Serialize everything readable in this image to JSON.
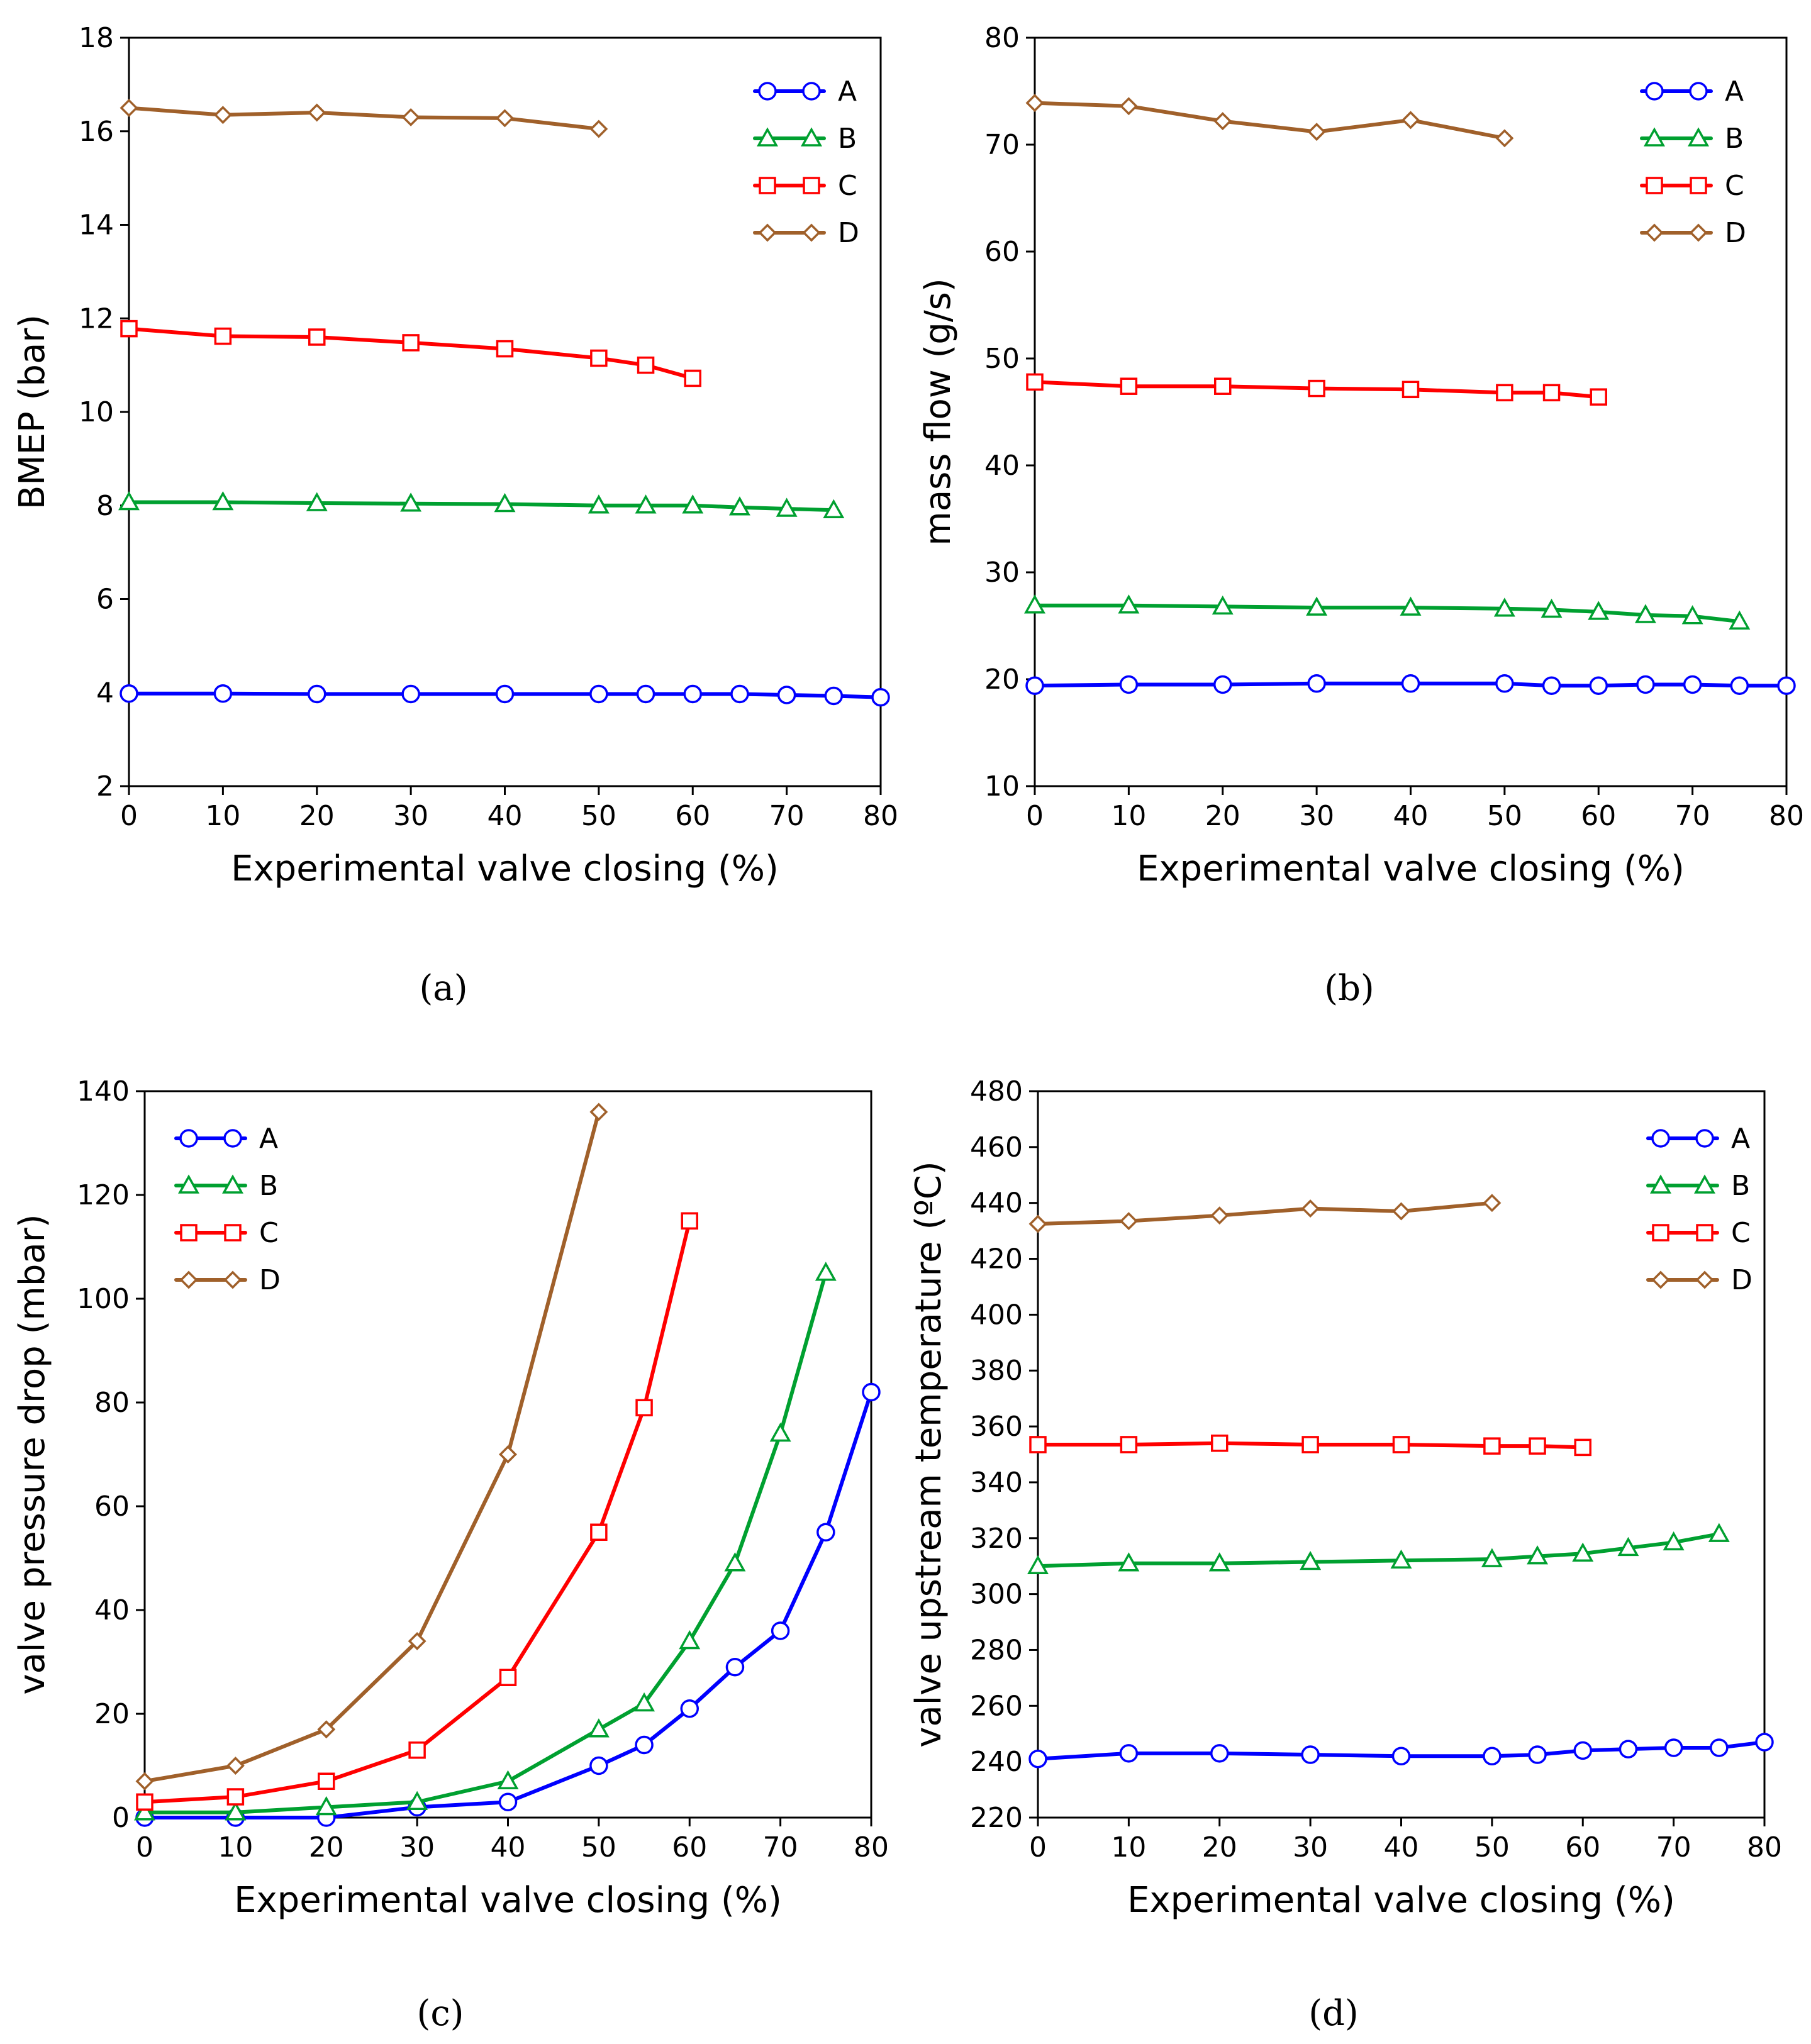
{
  "colors": {
    "A": "#0000ff",
    "B": "#00a030",
    "C": "#ff0000",
    "D": "#a0602a"
  },
  "chart_data": [
    {
      "type": "line",
      "caption": "(a)",
      "xlabel": "Experimental valve closing (%)",
      "ylabel": "BMEP (bar)",
      "xlim": [
        0,
        80
      ],
      "ylim": [
        2,
        18
      ],
      "xticks": [
        "0",
        "10",
        "20",
        "30",
        "40",
        "50",
        "60",
        "70",
        "80"
      ],
      "yticks": [
        "2",
        "4",
        "6",
        "8",
        "10",
        "12",
        "14",
        "16",
        "18"
      ],
      "legend_position": "top-right",
      "series": [
        {
          "name": "A",
          "marker": "circle",
          "x": [
            0,
            10,
            20,
            30,
            40,
            50,
            55,
            60,
            65,
            70,
            75,
            80
          ],
          "y": [
            3.98,
            3.98,
            3.97,
            3.97,
            3.97,
            3.97,
            3.97,
            3.97,
            3.97,
            3.95,
            3.93,
            3.9
          ]
        },
        {
          "name": "B",
          "marker": "triangle",
          "x": [
            0,
            10,
            20,
            30,
            40,
            50,
            55,
            60,
            65,
            70,
            75
          ],
          "y": [
            8.07,
            8.07,
            8.05,
            8.04,
            8.03,
            8.0,
            8.0,
            8.0,
            7.96,
            7.93,
            7.9
          ]
        },
        {
          "name": "C",
          "marker": "square",
          "x": [
            0,
            10,
            20,
            30,
            40,
            50,
            55,
            60
          ],
          "y": [
            11.78,
            11.62,
            11.6,
            11.48,
            11.35,
            11.15,
            11.0,
            10.72
          ]
        },
        {
          "name": "D",
          "marker": "diamond",
          "x": [
            0,
            10,
            20,
            30,
            40,
            50
          ],
          "y": [
            16.5,
            16.35,
            16.4,
            16.3,
            16.28,
            16.05
          ]
        }
      ]
    },
    {
      "type": "line",
      "caption": "(b)",
      "xlabel": "Experimental valve closing (%)",
      "ylabel": "mass flow (g/s)",
      "xlim": [
        0,
        80
      ],
      "ylim": [
        10,
        80
      ],
      "xticks": [
        "0",
        "10",
        "20",
        "30",
        "40",
        "50",
        "60",
        "70",
        "80"
      ],
      "yticks": [
        "10",
        "20",
        "30",
        "40",
        "50",
        "60",
        "70",
        "80"
      ],
      "legend_position": "top-right",
      "series": [
        {
          "name": "A",
          "marker": "circle",
          "x": [
            0,
            10,
            20,
            30,
            40,
            50,
            55,
            60,
            65,
            70,
            75,
            80
          ],
          "y": [
            19.4,
            19.5,
            19.5,
            19.6,
            19.6,
            19.6,
            19.4,
            19.4,
            19.5,
            19.5,
            19.4,
            19.4
          ]
        },
        {
          "name": "B",
          "marker": "triangle",
          "x": [
            0,
            10,
            20,
            30,
            40,
            50,
            55,
            60,
            65,
            70,
            75
          ],
          "y": [
            26.9,
            26.9,
            26.8,
            26.7,
            26.7,
            26.6,
            26.5,
            26.3,
            26.0,
            25.9,
            25.4
          ]
        },
        {
          "name": "C",
          "marker": "square",
          "x": [
            0,
            10,
            20,
            30,
            40,
            50,
            55,
            60
          ],
          "y": [
            47.8,
            47.4,
            47.4,
            47.2,
            47.1,
            46.8,
            46.8,
            46.4
          ]
        },
        {
          "name": "D",
          "marker": "diamond",
          "x": [
            0,
            10,
            20,
            30,
            40,
            50
          ],
          "y": [
            73.9,
            73.6,
            72.2,
            71.2,
            72.3,
            70.6
          ]
        }
      ]
    },
    {
      "type": "line",
      "caption": "(c)",
      "xlabel": "Experimental valve closing (%)",
      "ylabel": "valve pressure drop (mbar)",
      "xlim": [
        0,
        80
      ],
      "ylim": [
        0,
        140
      ],
      "xticks": [
        "0",
        "10",
        "20",
        "30",
        "40",
        "50",
        "60",
        "70",
        "80"
      ],
      "yticks": [
        "0",
        "20",
        "40",
        "60",
        "80",
        "100",
        "120",
        "140"
      ],
      "legend_position": "top-left",
      "series": [
        {
          "name": "A",
          "marker": "circle",
          "x": [
            0,
            10,
            20,
            30,
            40,
            50,
            55,
            60,
            65,
            70,
            75,
            80
          ],
          "y": [
            0,
            0,
            0,
            2,
            3,
            10,
            14,
            21,
            29,
            36,
            55,
            82
          ]
        },
        {
          "name": "B",
          "marker": "triangle",
          "x": [
            0,
            10,
            20,
            30,
            40,
            50,
            55,
            60,
            65,
            70,
            75
          ],
          "y": [
            1,
            1,
            2,
            3,
            7,
            17,
            22,
            34,
            49,
            74,
            105
          ]
        },
        {
          "name": "C",
          "marker": "square",
          "x": [
            0,
            10,
            20,
            30,
            40,
            50,
            55,
            60
          ],
          "y": [
            3,
            4,
            7,
            13,
            27,
            55,
            79,
            115
          ]
        },
        {
          "name": "D",
          "marker": "diamond",
          "x": [
            0,
            10,
            20,
            30,
            40,
            50
          ],
          "y": [
            7,
            10,
            17,
            34,
            70,
            136
          ]
        }
      ]
    },
    {
      "type": "line",
      "caption": "(d)",
      "xlabel": "Experimental valve closing (%)",
      "ylabel": "valve upstream temperature (ºC)",
      "xlim": [
        0,
        80
      ],
      "ylim": [
        220,
        480
      ],
      "xticks": [
        "0",
        "10",
        "20",
        "30",
        "40",
        "50",
        "60",
        "70",
        "80"
      ],
      "yticks": [
        "220",
        "240",
        "260",
        "280",
        "300",
        "320",
        "340",
        "360",
        "380",
        "400",
        "420",
        "440",
        "460",
        "480"
      ],
      "legend_position": "top-right",
      "series": [
        {
          "name": "A",
          "marker": "circle",
          "x": [
            0,
            10,
            20,
            30,
            40,
            50,
            55,
            60,
            65,
            70,
            75,
            80
          ],
          "y": [
            241,
            243,
            243,
            242.5,
            242,
            242,
            242.5,
            244,
            244.5,
            245,
            245,
            247
          ]
        },
        {
          "name": "B",
          "marker": "triangle",
          "x": [
            0,
            10,
            20,
            30,
            40,
            50,
            55,
            60,
            65,
            70,
            75
          ],
          "y": [
            310,
            311,
            311,
            311.5,
            312,
            312.5,
            313.5,
            314.5,
            316.5,
            318.5,
            321.5
          ]
        },
        {
          "name": "C",
          "marker": "square",
          "x": [
            0,
            10,
            20,
            30,
            40,
            50,
            55,
            60
          ],
          "y": [
            353.5,
            353.5,
            354,
            353.5,
            353.5,
            353,
            353,
            352.5
          ]
        },
        {
          "name": "D",
          "marker": "diamond",
          "x": [
            0,
            10,
            20,
            30,
            40,
            50
          ],
          "y": [
            432.5,
            433.5,
            435.5,
            438,
            437,
            440
          ]
        }
      ]
    }
  ]
}
